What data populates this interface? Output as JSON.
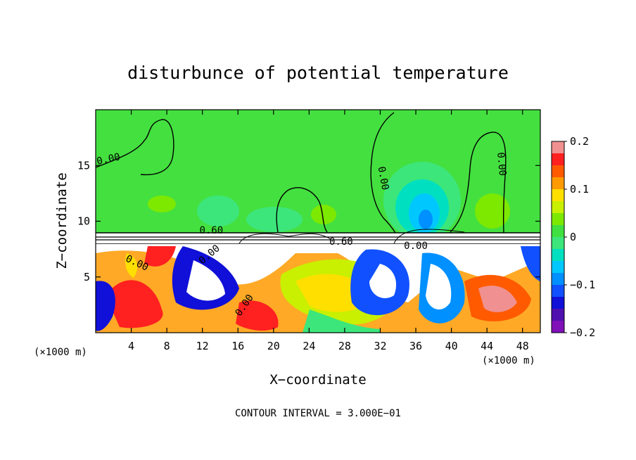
{
  "chart_data": {
    "type": "heatmap",
    "title": "disturbunce of potential temperature",
    "xlabel": "X−coordinate",
    "ylabel": "Z−coordinate",
    "x_unit": "(×1000 m)",
    "y_unit": "(×1000 m)",
    "xlim": [
      0,
      50
    ],
    "ylim": [
      0,
      20
    ],
    "x_ticks": [
      4,
      8,
      12,
      16,
      20,
      24,
      28,
      32,
      36,
      40,
      44,
      48
    ],
    "y_ticks": [
      5,
      10,
      15
    ],
    "contour_interval_text": "CONTOUR INTERVAL = 3.000E−01",
    "colorbar": {
      "range": [
        -0.2,
        0.2
      ],
      "ticks": [
        0.2,
        0.1,
        0,
        -0.1,
        -0.2
      ],
      "tick_labels": [
        "0.2",
        "0.1",
        "0",
        "−0.1",
        "−0.2"
      ],
      "colors": [
        "#f09090",
        "#ff2020",
        "#ff5a00",
        "#ff9a00",
        "#ffdf00",
        "#c8f000",
        "#7de800",
        "#3fe040",
        "#3ce67a",
        "#00e0c0",
        "#00c8ff",
        "#0090ff",
        "#1050ff",
        "#1010d8",
        "#5010b0",
        "#8010b8"
      ]
    },
    "contour_labels": [
      {
        "text": "0.00",
        "x": 1.5,
        "y": 15.3,
        "angle": -12
      },
      {
        "text": "0.00",
        "x": 32.0,
        "y": 13.8,
        "angle": 80
      },
      {
        "text": "0.00",
        "x": 45.3,
        "y": 15.1,
        "angle": 85
      },
      {
        "text": "0.60",
        "x": 13.0,
        "y": 8.9,
        "angle": 0
      },
      {
        "text": "0.60",
        "x": 27.6,
        "y": 7.9,
        "angle": 0
      },
      {
        "text": "0.00",
        "x": 13.0,
        "y": 6.8,
        "angle": -40
      },
      {
        "text": "0.00",
        "x": 4.5,
        "y": 6.0,
        "angle": 25
      },
      {
        "text": "0.00",
        "x": 17.0,
        "y": 2.3,
        "angle": -55
      },
      {
        "text": "0.00",
        "x": 36.0,
        "y": 7.5,
        "angle": 0
      }
    ],
    "grid": false,
    "legend": "colorbar-right"
  }
}
